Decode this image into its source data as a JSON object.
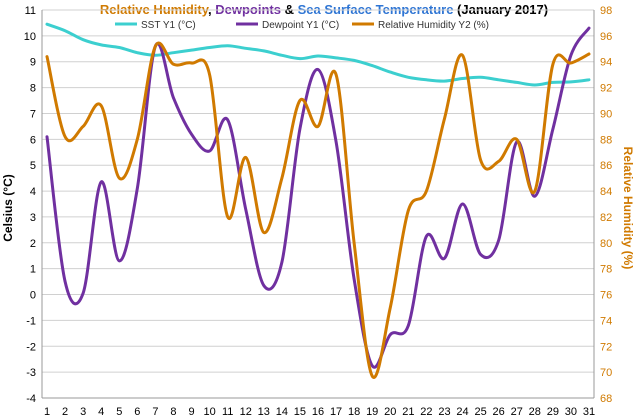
{
  "chart_data": {
    "type": "line",
    "title_parts": [
      {
        "text": "Relative Humidity",
        "color": "#d07a00"
      },
      {
        "text": ", ",
        "color": "#000000"
      },
      {
        "text": "Dewpoints",
        "color": "#7030a0"
      },
      {
        "text": " & ",
        "color": "#000000"
      },
      {
        "text": "Sea Surface Temperature",
        "color": "#2e75d4"
      },
      {
        "text": " (January 2017)",
        "color": "#000000"
      }
    ],
    "ylabel_left": "Celsius (°C)",
    "ylabel_right": "Relative Humidity (%)",
    "ylim_left": [
      -4,
      11
    ],
    "yticks_left": [
      "-4",
      "-3",
      "-2",
      "-1",
      "0",
      "1",
      "2",
      "3",
      "4",
      "5",
      "6",
      "7",
      "8",
      "9",
      "10",
      "11"
    ],
    "ylim_right": [
      68,
      98
    ],
    "yticks_right": [
      "68",
      "70",
      "72",
      "74",
      "76",
      "78",
      "80",
      "82",
      "84",
      "86",
      "88",
      "90",
      "92",
      "94",
      "96",
      "98"
    ],
    "x": [
      "1",
      "2",
      "3",
      "4",
      "5",
      "6",
      "7",
      "8",
      "9",
      "10",
      "11",
      "12",
      "13",
      "14",
      "15",
      "16",
      "17",
      "18",
      "19",
      "20",
      "21",
      "22",
      "23",
      "24",
      "25",
      "26",
      "27",
      "28",
      "29",
      "30",
      "31"
    ],
    "grid": true,
    "legend_position": "top",
    "series": [
      {
        "name": "SST Y1 (°C)",
        "axis": "left",
        "color": "#3ccfcf",
        "values": [
          10.45,
          10.2,
          9.85,
          9.65,
          9.55,
          9.35,
          9.25,
          9.35,
          9.45,
          9.55,
          9.62,
          9.52,
          9.42,
          9.25,
          9.12,
          9.22,
          9.15,
          9.05,
          8.85,
          8.6,
          8.4,
          8.3,
          8.25,
          8.35,
          8.4,
          8.3,
          8.2,
          8.1,
          8.2,
          8.22,
          8.3
        ]
      },
      {
        "name": "Dewpoint Y1 (°C)",
        "axis": "left",
        "color": "#7030a0",
        "values": [
          6.1,
          0.5,
          0.05,
          4.35,
          1.3,
          4.1,
          9.6,
          7.6,
          6.2,
          5.55,
          6.75,
          3.3,
          0.35,
          1.25,
          6.4,
          8.7,
          5.9,
          0.6,
          -2.75,
          -1.55,
          -1.2,
          2.25,
          1.4,
          3.5,
          1.55,
          2.1,
          5.9,
          3.8,
          6.4,
          9.25,
          10.3
        ]
      },
      {
        "name": "Relative Humidity Y2 (%)",
        "axis": "right",
        "color": "#d07a00",
        "values": [
          94.4,
          88.2,
          89.0,
          90.6,
          85.0,
          88.0,
          95.2,
          93.8,
          93.9,
          93.0,
          82.0,
          86.6,
          80.8,
          85.0,
          91.0,
          89.0,
          93.0,
          80.0,
          69.7,
          75.0,
          82.5,
          84.0,
          89.6,
          94.5,
          86.4,
          86.3,
          88.0,
          84.0,
          93.8,
          93.9,
          94.6
        ]
      }
    ]
  }
}
